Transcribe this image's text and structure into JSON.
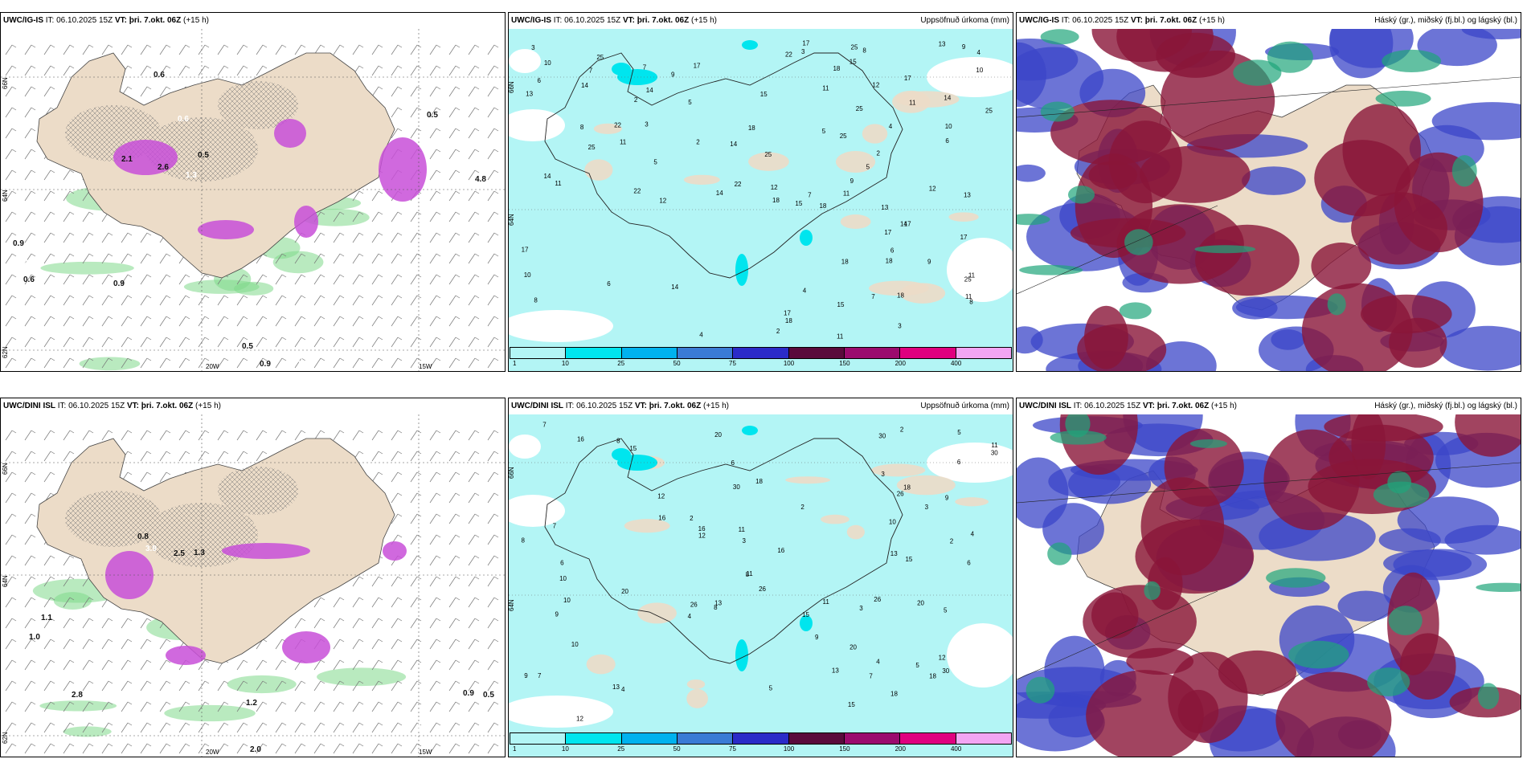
{
  "panels": [
    {
      "model": "UWC/IG-IS",
      "it_label": "IT:",
      "it_value": "06.10.2025 15Z",
      "vt_label": "VT:",
      "vt_value": "þri. 7.okt. 06Z",
      "lead": "(+15 h)",
      "field": ""
    },
    {
      "model": "UWC/IG-IS",
      "it_label": "IT:",
      "it_value": "06.10.2025 15Z",
      "vt_label": "VT:",
      "vt_value": "þri. 7.okt. 06Z",
      "lead": "(+15 h)",
      "field": "Uppsöfnuð úrkoma (mm)"
    },
    {
      "model": "UWC/IG-IS",
      "it_label": "IT:",
      "it_value": "06.10.2025 15Z",
      "vt_label": "VT:",
      "vt_value": "þri. 7.okt. 06Z",
      "lead": "(+15 h)",
      "field": "Háský (gr.), miðský (fj.bl.) og lágský (bl.)"
    },
    {
      "model": "UWC/DINI ISL",
      "it_label": "IT:",
      "it_value": "06.10.2025 15Z",
      "vt_label": "VT:",
      "vt_value": "þri. 7.okt. 06Z",
      "lead": "(+15 h)",
      "field": ""
    },
    {
      "model": "UWC/DINI ISL",
      "it_label": "IT:",
      "it_value": "06.10.2025 15Z",
      "vt_label": "VT:",
      "vt_value": "þri. 7.okt. 06Z",
      "lead": "(+15 h)",
      "field": "Uppsöfnuð úrkoma (mm)"
    },
    {
      "model": "UWC/DINI ISL",
      "it_label": "IT:",
      "it_value": "06.10.2025 15Z",
      "vt_label": "VT:",
      "vt_value": "þri. 7.okt. 06Z",
      "lead": "(+15 h)",
      "field": "Háský (gr.), miðský (fj.bl.) og lágský (bl.)"
    }
  ],
  "grid_labels": {
    "lat_top": "66N",
    "lat_mid": "64N",
    "lat_bottom": "62N",
    "lon_left": "20W",
    "lon_right": "15W"
  },
  "precip_legend": {
    "ticks": [
      "1",
      "10",
      "25",
      "50",
      "75",
      "100",
      "150",
      "200",
      "400"
    ],
    "colors": [
      "#b3f5f5",
      "#00e5ee",
      "#00b2ee",
      "#3a7bd5",
      "#2b2bc8",
      "#5a0a3c",
      "#9b0a6e",
      "#e0007f",
      "#f3a5f3"
    ]
  },
  "colors": {
    "land": "#ecdcc8",
    "sea": "#ffffff",
    "precip_light": "#b3f5f5",
    "precip_mid": "#00e5ee",
    "purple_shade": "#c84fd8",
    "green_shade": "#7fd98a",
    "high_cloud": "#1fa57a",
    "mid_cloud": "#8a1538",
    "low_cloud": "#3b45c8"
  },
  "contours_top_left": [
    "0.6",
    "0.6",
    "2.1",
    "2.6",
    "1.3",
    "0.5",
    "0.9",
    "0.6",
    "0.6",
    "0.9",
    "0.5",
    "0.5",
    "0.9",
    "0.6",
    "4.8",
    "0.5",
    "0.6"
  ],
  "contours_bottom_left": [
    "0.8",
    "3.9",
    "2.5",
    "1.3",
    "0.9",
    "1.1",
    "1.0",
    "0.6",
    "2.8",
    "1.2",
    "0.5",
    "0.9",
    "0.5",
    "1.4",
    "2.0"
  ],
  "precip_numbers_top": [
    "12",
    "11",
    "14",
    "18",
    "25",
    "22",
    "17",
    "15",
    "9",
    "8",
    "6",
    "7",
    "5",
    "11",
    "3",
    "10",
    "4",
    "2",
    "14",
    "18",
    "17",
    "25",
    "13"
  ],
  "precip_numbers_bottom": [
    "4",
    "6",
    "26",
    "20",
    "13",
    "10",
    "12",
    "8",
    "9",
    "5",
    "7",
    "15",
    "18",
    "3",
    "11",
    "16",
    "30",
    "2"
  ]
}
